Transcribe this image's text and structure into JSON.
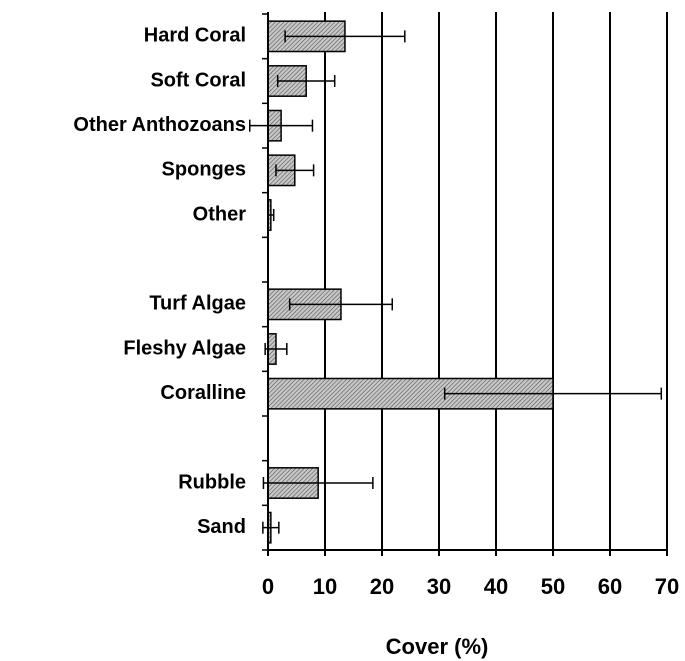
{
  "chart_data": {
    "type": "hbar",
    "xlabel": "Cover (%)",
    "categories": [
      "Hard Coral",
      "Soft Coral",
      "Other Anthozoans",
      "Sponges",
      "Other",
      null,
      "Turf Algae",
      "Fleshy Algae",
      "Coralline",
      null,
      "Rubble",
      "Sand"
    ],
    "values": [
      13.5,
      6.7,
      2.3,
      4.7,
      0.5,
      null,
      12.8,
      1.4,
      50,
      null,
      8.8,
      0.5
    ],
    "errors": [
      10.5,
      5,
      5.5,
      3.3,
      0.5,
      null,
      9,
      1.9,
      19,
      null,
      9.6,
      1.4
    ],
    "color": "#8c8c8c",
    "xlim": [
      0,
      70
    ],
    "xticks": [
      0,
      10,
      20,
      30,
      40,
      50,
      60,
      70
    ],
    "grid": true
  }
}
